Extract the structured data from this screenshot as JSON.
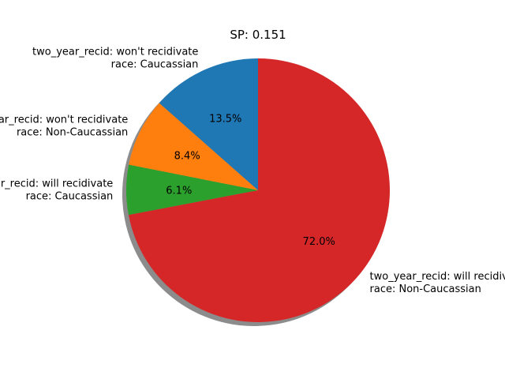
{
  "chart_data": {
    "type": "pie",
    "title": "SP: 0.151",
    "start_angle_deg": 90,
    "direction": "counterclockwise",
    "shadow": true,
    "slices": [
      {
        "label_lines": [
          "two_year_recid: won't recidivate",
          "race: Caucassian"
        ],
        "value": 13.5,
        "pct_label": "13.5%",
        "color": "#1f77b4"
      },
      {
        "label_lines": [
          "two_year_recid: won't recidivate",
          "race: Non-Caucassian"
        ],
        "value": 8.4,
        "pct_label": "8.4%",
        "color": "#ff7f0e"
      },
      {
        "label_lines": [
          "two_year_recid: will recidivate",
          "race: Caucassian"
        ],
        "value": 6.1,
        "pct_label": "6.1%",
        "color": "#2ca02c"
      },
      {
        "label_lines": [
          "two_year_recid: will recidivate",
          "race: Non-Caucassian"
        ],
        "value": 72.0,
        "pct_label": "72.0%",
        "color": "#d62728"
      }
    ]
  }
}
